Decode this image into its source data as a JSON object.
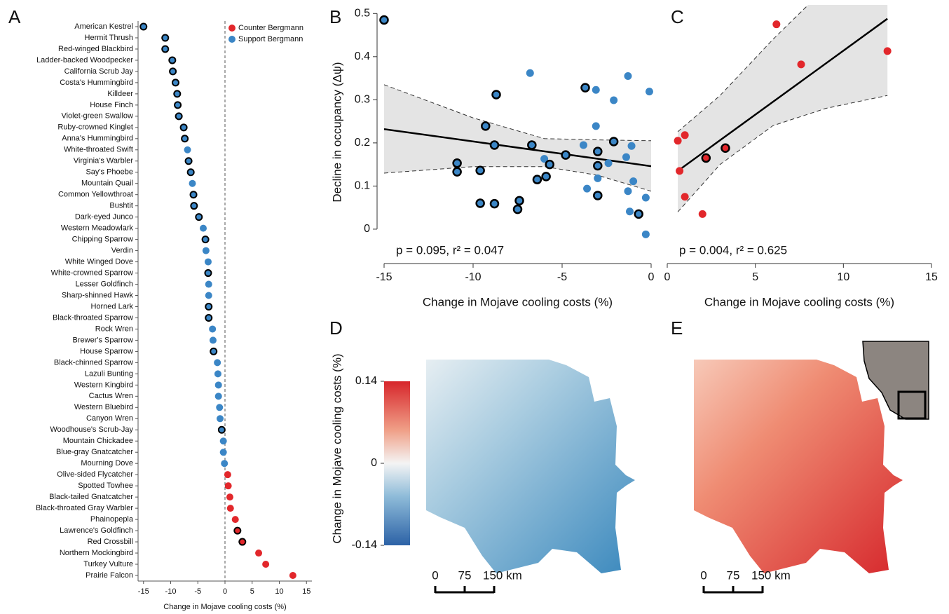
{
  "chart_data": [
    {
      "type": "dot",
      "panel": "A",
      "categories": [
        "American Kestrel",
        "Hermit Thrush",
        "Red-winged Blackbird",
        "Ladder-backed Woodpecker",
        "California Scrub Jay",
        "Costa's Hummingbird",
        "Killdeer",
        "House Finch",
        "Violet-green Swallow",
        "Ruby-crowned Kinglet",
        "Anna's Hummingbird",
        "White-throated Swift",
        "Virginia's Warbler",
        "Say's Phoebe",
        "Mountain Quail",
        "Common Yellowthroat",
        "Bushtit",
        "Dark-eyed Junco",
        "Western Meadowlark",
        "Chipping Sparrow",
        "Verdin",
        "White Winged Dove",
        "White-crowned Sparrow",
        "Lesser Goldfinch",
        "Sharp-shinned Hawk",
        "Horned Lark",
        "Black-throated Sparrow",
        "Rock Wren",
        "Brewer's Sparrow",
        "House Sparrow",
        "Black-chinned Sparrow",
        "Lazuli Bunting",
        "Western Kingbird",
        "Cactus Wren",
        "Western Bluebird",
        "Canyon Wren",
        "Woodhouse's Scrub-Jay",
        "Mountain Chickadee",
        "Blue-gray Gnatcatcher",
        "Mourning Dove",
        "Olive-sided Flycatcher",
        "Spotted Towhee",
        "Black-tailed Gnatcatcher",
        "Black-throated Gray Warbler",
        "Phainopepla",
        "Lawrence's Goldfinch",
        "Red Crossbill",
        "Northern Mockingbird",
        "Turkey Vulture",
        "Prairie Falcon"
      ],
      "series": [
        {
          "name": "Counter Bergmann",
          "color": "#e2272b",
          "values": [
            null,
            null,
            null,
            null,
            null,
            null,
            null,
            null,
            null,
            null,
            null,
            null,
            null,
            null,
            null,
            null,
            null,
            null,
            null,
            null,
            null,
            null,
            null,
            null,
            null,
            null,
            null,
            null,
            null,
            null,
            null,
            null,
            null,
            null,
            null,
            null,
            null,
            null,
            null,
            null,
            0.5,
            0.6,
            0.9,
            1,
            1.9,
            2.3,
            3.2,
            6.2,
            7.5,
            12.5
          ]
        },
        {
          "name": "Support Bergmann",
          "color": "#3b86c6",
          "values": [
            -15,
            -11,
            -11,
            -9.7,
            -9.6,
            -9.1,
            -8.8,
            -8.7,
            -8.5,
            -7.6,
            -7.4,
            -6.9,
            -6.7,
            -6.3,
            -6,
            -5.8,
            -5.7,
            -4.8,
            -4,
            -3.6,
            -3.5,
            -3.1,
            -3.1,
            -3,
            -3,
            -3,
            -3,
            -2.3,
            -2.2,
            -2.1,
            -1.4,
            -1.3,
            -1.2,
            -1.2,
            -1,
            -0.9,
            -0.6,
            -0.3,
            -0.3,
            -0.1,
            null,
            null,
            null,
            null,
            null,
            null,
            null,
            null,
            null,
            null
          ]
        }
      ],
      "outlined": [
        true,
        true,
        true,
        true,
        true,
        true,
        true,
        true,
        true,
        true,
        true,
        false,
        true,
        true,
        false,
        true,
        true,
        true,
        false,
        true,
        false,
        false,
        true,
        false,
        false,
        true,
        true,
        false,
        false,
        true,
        false,
        false,
        false,
        false,
        false,
        false,
        true,
        false,
        false,
        false,
        false,
        false,
        false,
        false,
        false,
        true,
        true,
        false,
        false,
        false
      ],
      "xlabel": "Change in Mojave cooling costs (%)",
      "xlim": [
        -16,
        16
      ],
      "xticks": [
        -15,
        -10,
        -5,
        0,
        5,
        10,
        15
      ],
      "legend": "upper right"
    },
    {
      "type": "scatter",
      "panel": "B",
      "color": "#3b86c6",
      "x": [
        -15,
        -6.8,
        -8.7,
        -3.7,
        -3.1,
        -1.3,
        -0.1,
        -2.1,
        -3.1,
        -9.3,
        -1.4,
        -8.8,
        -6.7,
        -3.8,
        -2.1,
        -1.1,
        -4.8,
        -3,
        -6,
        -5.7,
        -3,
        -2.4,
        -10.9,
        -10.9,
        -9.6,
        -6.4,
        -5.9,
        -3,
        -1,
        -3.6,
        -1.3,
        -3,
        -7.4,
        -9.6,
        -8.8,
        -7.5,
        -1.2,
        -0.7,
        -0.3,
        -0.3
      ],
      "values": [
        0.485,
        0.362,
        0.312,
        0.328,
        0.323,
        0.355,
        0.319,
        0.299,
        0.239,
        0.239,
        0.167,
        0.195,
        0.195,
        0.195,
        0.203,
        0.193,
        0.172,
        0.18,
        0.163,
        0.15,
        0.147,
        0.153,
        0.153,
        0.133,
        0.136,
        0.115,
        0.122,
        0.118,
        0.111,
        0.094,
        0.088,
        0.078,
        0.066,
        0.06,
        0.059,
        0.046,
        0.041,
        0.035,
        0.073,
        -0.012
      ],
      "outlined": [
        true,
        false,
        true,
        true,
        false,
        false,
        false,
        false,
        false,
        true,
        false,
        true,
        true,
        false,
        true,
        false,
        true,
        true,
        false,
        true,
        true,
        false,
        true,
        true,
        true,
        true,
        true,
        false,
        false,
        false,
        false,
        true,
        true,
        true,
        true,
        true,
        false,
        true,
        false,
        false
      ],
      "fit_x": [
        -15,
        0
      ],
      "fit": [
        0.232,
        0.146
      ],
      "ci_x": [
        -15,
        -10,
        -6,
        -3,
        0
      ],
      "ci_upper": [
        0.335,
        0.258,
        0.21,
        0.207,
        0.205
      ],
      "ci_lower": [
        0.13,
        0.145,
        0.145,
        0.125,
        0.088
      ],
      "annotation": "p = 0.095, r² = 0.047",
      "xlabel": "Change in Mojave cooling costs (%)",
      "ylabel": "Decline in occupancy (Δψ)",
      "xlim": [
        -15,
        0
      ],
      "xticks": [
        -15,
        -10,
        -5,
        0
      ],
      "ylim": [
        -0.07,
        0.52
      ],
      "yticks": [
        0,
        0.1,
        0.2,
        0.3,
        0.4,
        0.5
      ]
    },
    {
      "type": "scatter",
      "panel": "C",
      "color": "#e2272b",
      "x": [
        0.6,
        1,
        0.7,
        2.2,
        3.3,
        1,
        2,
        6.2,
        7.6,
        12.5
      ],
      "values": [
        0.205,
        0.218,
        0.135,
        0.165,
        0.188,
        0.075,
        0.035,
        0.475,
        0.382,
        0.413
      ],
      "outlined": [
        false,
        false,
        false,
        true,
        true,
        false,
        false,
        false,
        false,
        false
      ],
      "fit_x": [
        0.6,
        12.5
      ],
      "fit": [
        0.135,
        0.488
      ],
      "ci_x": [
        0.6,
        3,
        6,
        9,
        12.5
      ],
      "ci_upper": [
        0.226,
        0.31,
        0.44,
        0.56,
        0.7
      ],
      "ci_lower": [
        0.04,
        0.15,
        0.24,
        0.28,
        0.31
      ],
      "annotation": "p = 0.004, r² = 0.625",
      "xlabel": "Change in Mojave cooling costs (%)",
      "xlim": [
        0,
        15
      ],
      "xticks": [
        0,
        5,
        10,
        15
      ],
      "ylim": [
        -0.07,
        0.52
      ]
    }
  ],
  "maps": {
    "panels": [
      "D",
      "E"
    ],
    "colorbar": {
      "label": "Change in Mojave cooling costs (%)",
      "lim": [
        -0.14,
        0.14
      ],
      "ticks": [
        0.14,
        0,
        -0.14
      ]
    },
    "scalebar": [
      0,
      75,
      {
        "value": 150,
        "label": "150 km"
      }
    ]
  }
}
